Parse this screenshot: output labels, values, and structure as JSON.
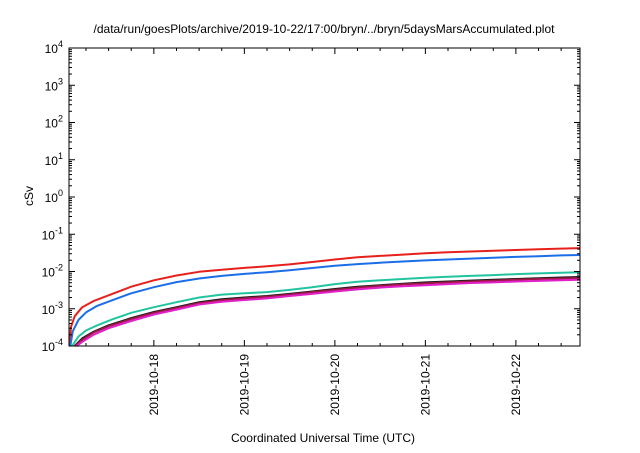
{
  "chart_data": {
    "type": "line",
    "title": "/data/run/goesPlots/archive/2019-10-22/17:00/bryn/../bryn/5daysMarsAccumulated.plot",
    "xlabel": "Coordinated Universal Time (UTC)",
    "ylabel": "cSv",
    "yscale": "log",
    "ylim": [
      0.0001,
      10000
    ],
    "xlim": [
      "2019-10-17T01:30",
      "2019-10-22T17:00"
    ],
    "x_ticks": [
      "2019-10-18",
      "2019-10-19",
      "2019-10-20",
      "2019-10-21",
      "2019-10-22"
    ],
    "y_ticks": [
      {
        "base": "10",
        "exp": "-4",
        "value": 0.0001
      },
      {
        "base": "10",
        "exp": "-3",
        "value": 0.001
      },
      {
        "base": "10",
        "exp": "-2",
        "value": 0.01
      },
      {
        "base": "10",
        "exp": "-1",
        "value": 0.1
      },
      {
        "base": "10",
        "exp": "0",
        "value": 1
      },
      {
        "base": "10",
        "exp": "1",
        "value": 10
      },
      {
        "base": "10",
        "exp": "2",
        "value": 100
      },
      {
        "base": "10",
        "exp": "3",
        "value": 1000
      },
      {
        "base": "10",
        "exp": "4",
        "value": 10000
      }
    ],
    "grid": false,
    "legend": "none",
    "series": [
      {
        "color": "#e8201c",
        "points": [
          [
            "2019-10-17T01:42",
            0.0001
          ],
          [
            "2019-10-17T02:00",
            0.00032
          ],
          [
            "2019-10-17T03:00",
            0.00063
          ],
          [
            "2019-10-17T05:00",
            0.0011
          ],
          [
            "2019-10-17T08:00",
            0.0016
          ],
          [
            "2019-10-17T12:00",
            0.0023
          ],
          [
            "2019-10-17T18:00",
            0.0039
          ],
          [
            "2019-10-18T00:00",
            0.0058
          ],
          [
            "2019-10-18T06:00",
            0.0078
          ],
          [
            "2019-10-18T12:00",
            0.0098
          ],
          [
            "2019-10-18T18:00",
            0.0112
          ],
          [
            "2019-10-19T00:00",
            0.0125
          ],
          [
            "2019-10-19T06:00",
            0.0138
          ],
          [
            "2019-10-19T12:00",
            0.0155
          ],
          [
            "2019-10-19T18:00",
            0.018
          ],
          [
            "2019-10-20T00:00",
            0.021
          ],
          [
            "2019-10-20T06:00",
            0.024
          ],
          [
            "2019-10-20T12:00",
            0.0262
          ],
          [
            "2019-10-20T18:00",
            0.0285
          ],
          [
            "2019-10-21T00:00",
            0.031
          ],
          [
            "2019-10-21T06:00",
            0.0328
          ],
          [
            "2019-10-21T12:00",
            0.0345
          ],
          [
            "2019-10-21T18:00",
            0.0362
          ],
          [
            "2019-10-22T00:00",
            0.0378
          ],
          [
            "2019-10-22T06:00",
            0.0395
          ],
          [
            "2019-10-22T12:00",
            0.0412
          ],
          [
            "2019-10-22T17:00",
            0.0425
          ]
        ]
      },
      {
        "color": "#1c6ee8",
        "points": [
          [
            "2019-10-17T01:50",
            0.0001
          ],
          [
            "2019-10-17T02:30",
            0.00025
          ],
          [
            "2019-10-17T04:00",
            0.0005
          ],
          [
            "2019-10-17T06:00",
            0.0008
          ],
          [
            "2019-10-17T09:00",
            0.0012
          ],
          [
            "2019-10-17T13:00",
            0.0017
          ],
          [
            "2019-10-17T18:00",
            0.0026
          ],
          [
            "2019-10-18T00:00",
            0.0038
          ],
          [
            "2019-10-18T06:00",
            0.0052
          ],
          [
            "2019-10-18T12:00",
            0.0065
          ],
          [
            "2019-10-18T18:00",
            0.0076
          ],
          [
            "2019-10-19T00:00",
            0.0086
          ],
          [
            "2019-10-19T06:00",
            0.0096
          ],
          [
            "2019-10-19T12:00",
            0.0108
          ],
          [
            "2019-10-19T18:00",
            0.0124
          ],
          [
            "2019-10-20T00:00",
            0.0143
          ],
          [
            "2019-10-20T06:00",
            0.0158
          ],
          [
            "2019-10-20T12:00",
            0.0172
          ],
          [
            "2019-10-20T18:00",
            0.0185
          ],
          [
            "2019-10-21T00:00",
            0.0198
          ],
          [
            "2019-10-21T06:00",
            0.021
          ],
          [
            "2019-10-21T12:00",
            0.0222
          ],
          [
            "2019-10-21T18:00",
            0.0234
          ],
          [
            "2019-10-22T00:00",
            0.0246
          ],
          [
            "2019-10-22T06:00",
            0.0258
          ],
          [
            "2019-10-22T12:00",
            0.027
          ],
          [
            "2019-10-22T17:00",
            0.0278
          ]
        ]
      },
      {
        "color": "#22c4a0",
        "points": [
          [
            "2019-10-17T02:20",
            0.0001
          ],
          [
            "2019-10-17T04:00",
            0.00018
          ],
          [
            "2019-10-17T06:00",
            0.00026
          ],
          [
            "2019-10-17T09:00",
            0.00036
          ],
          [
            "2019-10-17T13:00",
            0.00052
          ],
          [
            "2019-10-17T18:00",
            0.00078
          ],
          [
            "2019-10-18T00:00",
            0.0011
          ],
          [
            "2019-10-18T06:00",
            0.0015
          ],
          [
            "2019-10-18T12:00",
            0.002
          ],
          [
            "2019-10-18T18:00",
            0.0024
          ],
          [
            "2019-10-19T00:00",
            0.0026
          ],
          [
            "2019-10-19T06:00",
            0.0028
          ],
          [
            "2019-10-19T12:00",
            0.0032
          ],
          [
            "2019-10-19T18:00",
            0.0038
          ],
          [
            "2019-10-20T00:00",
            0.0046
          ],
          [
            "2019-10-20T06:00",
            0.0053
          ],
          [
            "2019-10-20T12:00",
            0.0058
          ],
          [
            "2019-10-20T18:00",
            0.0063
          ],
          [
            "2019-10-21T00:00",
            0.0068
          ],
          [
            "2019-10-21T06:00",
            0.0072
          ],
          [
            "2019-10-21T12:00",
            0.0076
          ],
          [
            "2019-10-21T18:00",
            0.008
          ],
          [
            "2019-10-22T00:00",
            0.0085
          ],
          [
            "2019-10-22T06:00",
            0.0089
          ],
          [
            "2019-10-22T12:00",
            0.0093
          ],
          [
            "2019-10-22T17:00",
            0.0096
          ]
        ]
      },
      {
        "color": "#1a1a1a",
        "points": [
          [
            "2019-10-17T03:00",
            0.0001
          ],
          [
            "2019-10-17T05:00",
            0.00016
          ],
          [
            "2019-10-17T08:00",
            0.00024
          ],
          [
            "2019-10-17T12:00",
            0.00036
          ],
          [
            "2019-10-17T18:00",
            0.00056
          ],
          [
            "2019-10-18T00:00",
            0.00082
          ],
          [
            "2019-10-18T06:00",
            0.0011
          ],
          [
            "2019-10-18T12:00",
            0.0015
          ],
          [
            "2019-10-18T18:00",
            0.0018
          ],
          [
            "2019-10-19T00:00",
            0.002
          ],
          [
            "2019-10-19T06:00",
            0.0022
          ],
          [
            "2019-10-19T12:00",
            0.0025
          ],
          [
            "2019-10-19T18:00",
            0.0029
          ],
          [
            "2019-10-20T00:00",
            0.0034
          ],
          [
            "2019-10-20T06:00",
            0.0039
          ],
          [
            "2019-10-20T12:00",
            0.0043
          ],
          [
            "2019-10-20T18:00",
            0.0047
          ],
          [
            "2019-10-21T00:00",
            0.0051
          ],
          [
            "2019-10-21T06:00",
            0.0054
          ],
          [
            "2019-10-21T12:00",
            0.0057
          ],
          [
            "2019-10-21T18:00",
            0.006
          ],
          [
            "2019-10-22T00:00",
            0.0063
          ],
          [
            "2019-10-22T06:00",
            0.0066
          ],
          [
            "2019-10-22T12:00",
            0.0069
          ],
          [
            "2019-10-22T17:00",
            0.0071
          ]
        ]
      },
      {
        "color": "#a01848",
        "points": [
          [
            "2019-10-17T03:10",
            0.0001
          ],
          [
            "2019-10-17T05:10",
            0.00015
          ],
          [
            "2019-10-17T08:00",
            0.00023
          ],
          [
            "2019-10-17T12:00",
            0.00034
          ],
          [
            "2019-10-17T18:00",
            0.00053
          ],
          [
            "2019-10-18T00:00",
            0.00078
          ],
          [
            "2019-10-18T06:00",
            0.00105
          ],
          [
            "2019-10-18T12:00",
            0.00142
          ],
          [
            "2019-10-18T18:00",
            0.0017
          ],
          [
            "2019-10-19T00:00",
            0.0019
          ],
          [
            "2019-10-19T06:00",
            0.0021
          ],
          [
            "2019-10-19T12:00",
            0.0024
          ],
          [
            "2019-10-19T18:00",
            0.0028
          ],
          [
            "2019-10-20T00:00",
            0.0032
          ],
          [
            "2019-10-20T06:00",
            0.0037
          ],
          [
            "2019-10-20T12:00",
            0.0041
          ],
          [
            "2019-10-20T18:00",
            0.0045
          ],
          [
            "2019-10-21T00:00",
            0.0048
          ],
          [
            "2019-10-21T06:00",
            0.0051
          ],
          [
            "2019-10-21T12:00",
            0.0054
          ],
          [
            "2019-10-21T18:00",
            0.0057
          ],
          [
            "2019-10-22T00:00",
            0.006
          ],
          [
            "2019-10-22T06:00",
            0.0063
          ],
          [
            "2019-10-22T12:00",
            0.0065
          ],
          [
            "2019-10-22T17:00",
            0.0067
          ]
        ]
      },
      {
        "color": "#e020c8",
        "points": [
          [
            "2019-10-17T03:30",
            0.0001
          ],
          [
            "2019-10-17T05:30",
            0.00014
          ],
          [
            "2019-10-17T08:00",
            0.0002
          ],
          [
            "2019-10-17T12:00",
            0.0003
          ],
          [
            "2019-10-17T18:00",
            0.00047
          ],
          [
            "2019-10-18T00:00",
            0.0007
          ],
          [
            "2019-10-18T06:00",
            0.00095
          ],
          [
            "2019-10-18T12:00",
            0.0013
          ],
          [
            "2019-10-18T18:00",
            0.00155
          ],
          [
            "2019-10-19T00:00",
            0.00172
          ],
          [
            "2019-10-19T06:00",
            0.0019
          ],
          [
            "2019-10-19T12:00",
            0.0022
          ],
          [
            "2019-10-19T18:00",
            0.0025
          ],
          [
            "2019-10-20T00:00",
            0.0029
          ],
          [
            "2019-10-20T06:00",
            0.0033
          ],
          [
            "2019-10-20T12:00",
            0.0037
          ],
          [
            "2019-10-20T18:00",
            0.004
          ],
          [
            "2019-10-21T00:00",
            0.0043
          ],
          [
            "2019-10-21T06:00",
            0.0046
          ],
          [
            "2019-10-21T12:00",
            0.0049
          ],
          [
            "2019-10-21T18:00",
            0.0051
          ],
          [
            "2019-10-22T00:00",
            0.0054
          ],
          [
            "2019-10-22T06:00",
            0.0056
          ],
          [
            "2019-10-22T12:00",
            0.0058
          ],
          [
            "2019-10-22T17:00",
            0.006
          ]
        ]
      }
    ]
  }
}
